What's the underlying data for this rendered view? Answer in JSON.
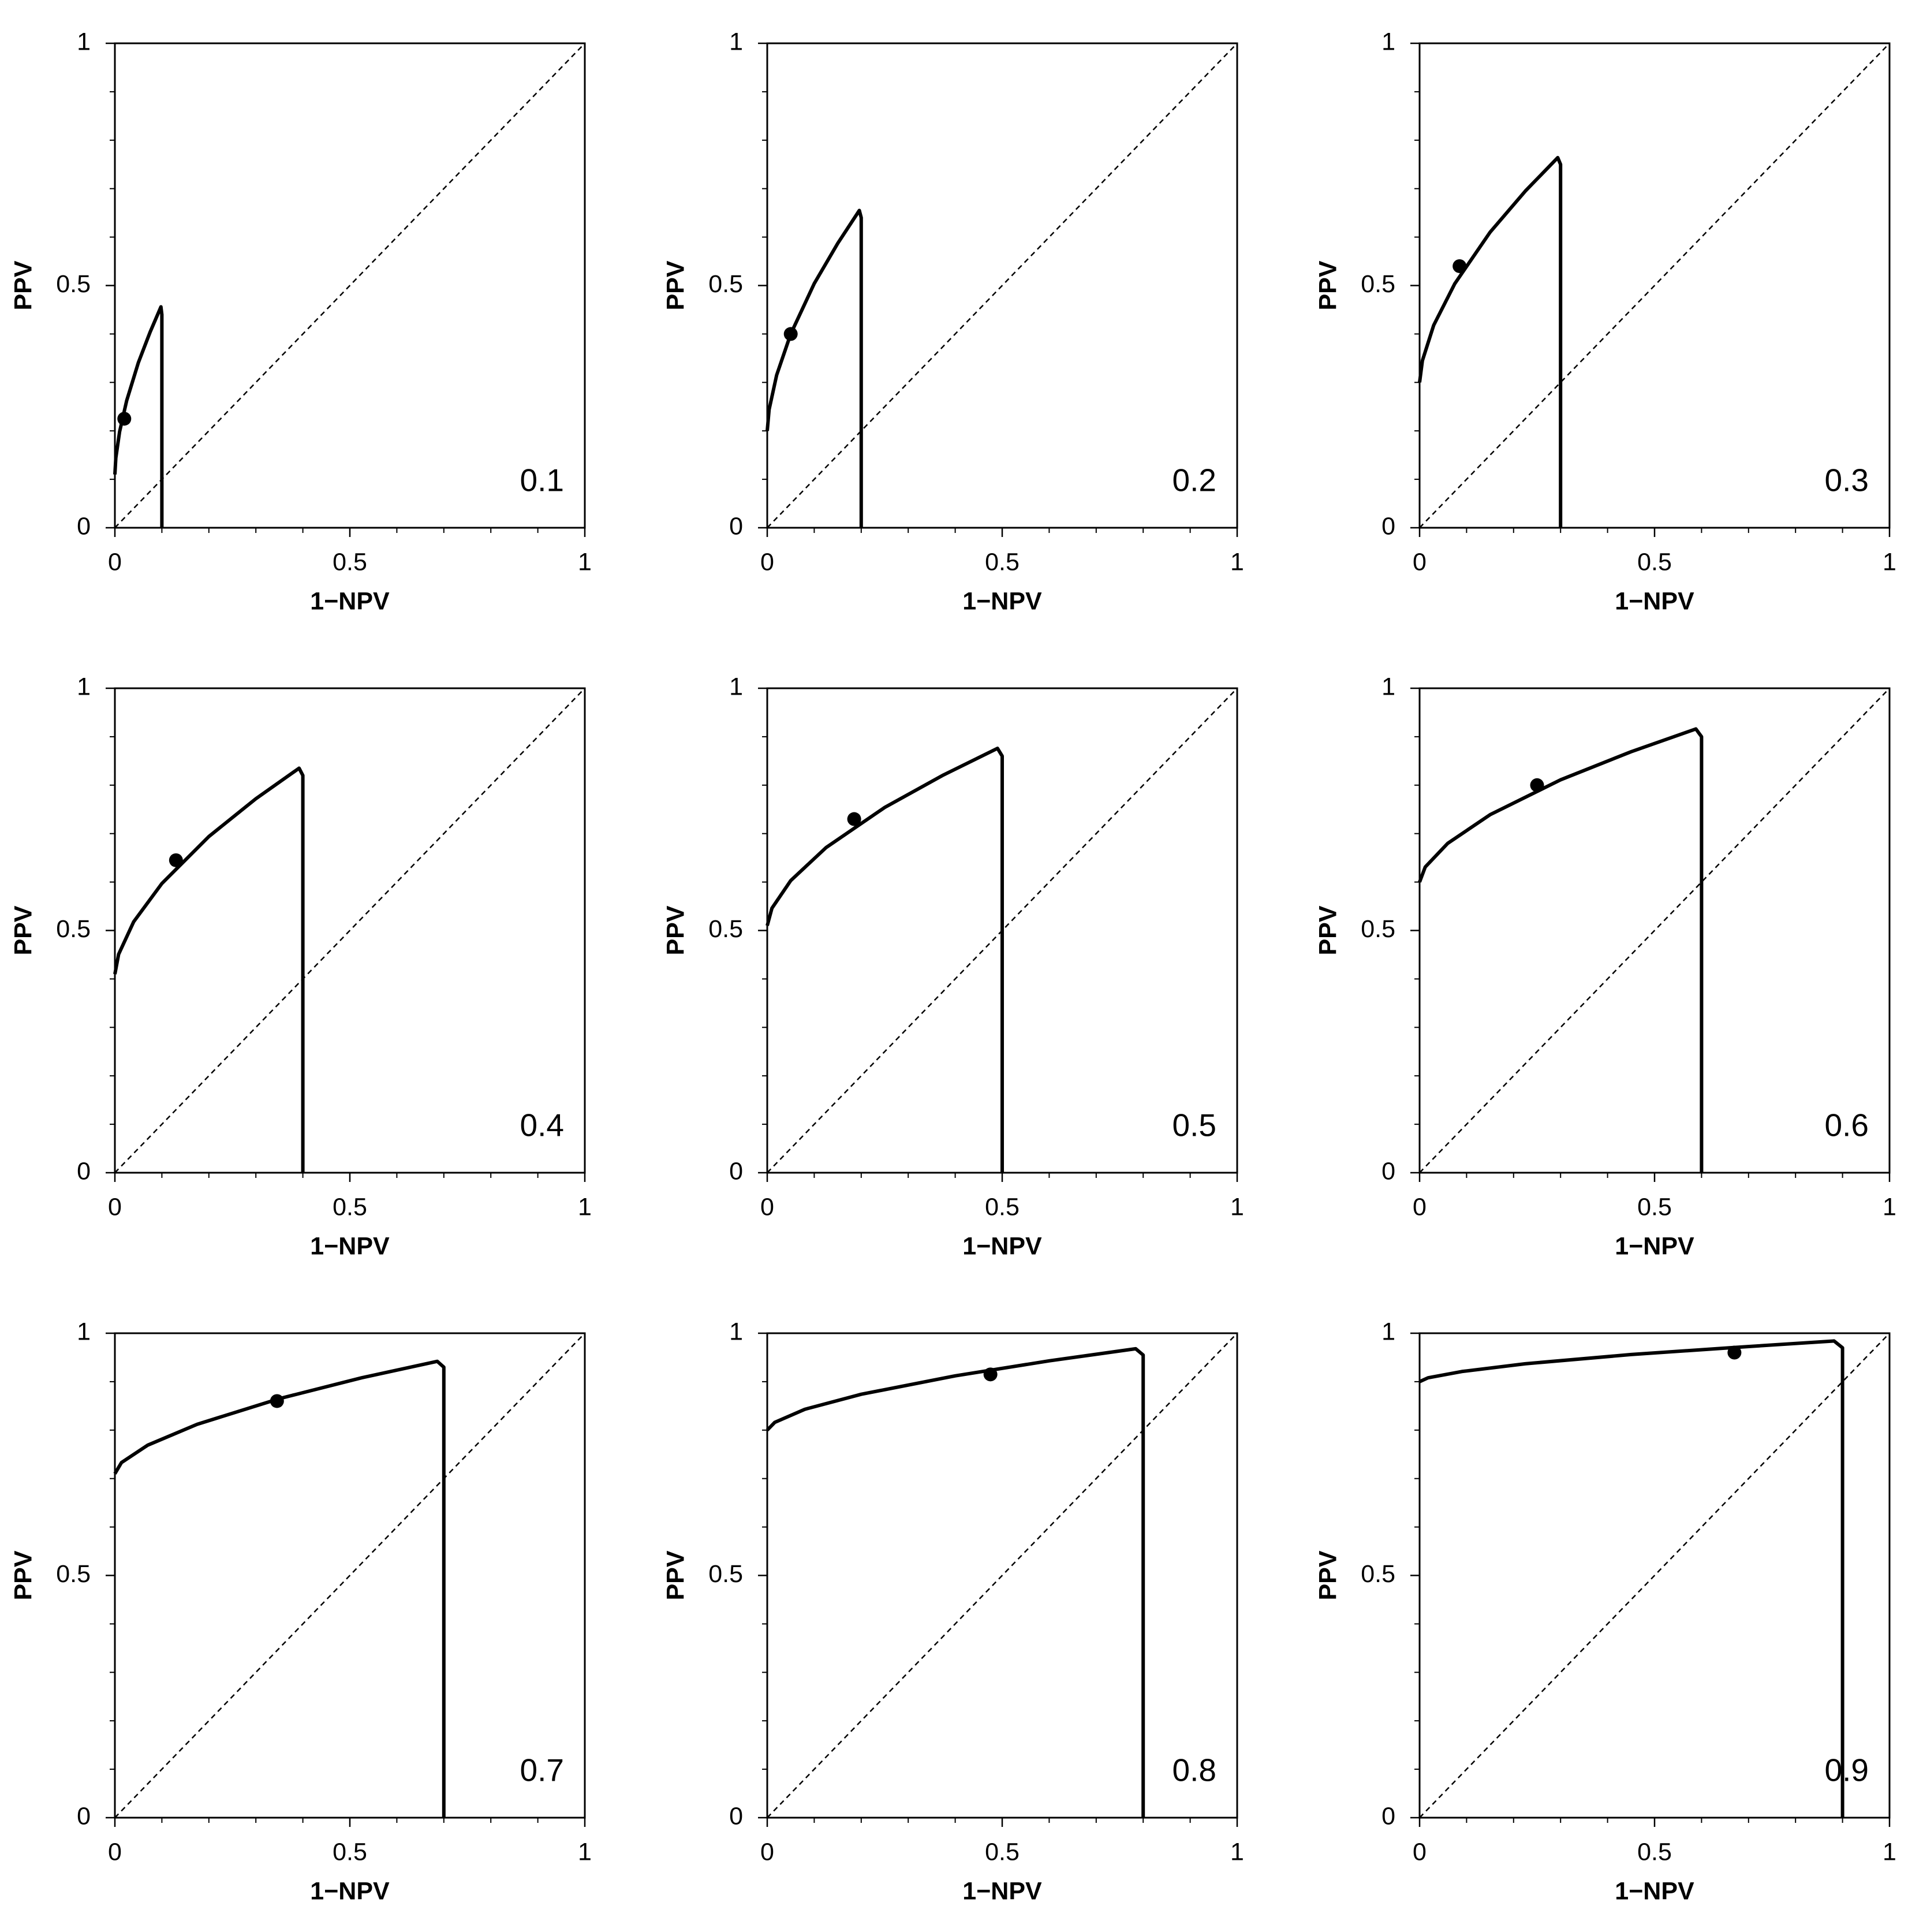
{
  "chart_data": [
    {
      "type": "line",
      "annotation": "0.1",
      "xlabel": "1−NPV",
      "ylabel": "PPV",
      "color": "#000000",
      "x": [
        0,
        0.002,
        0.01,
        0.025,
        0.05,
        0.075,
        0.098,
        0.1,
        0.1
      ],
      "values": [
        0.11,
        0.144,
        0.198,
        0.262,
        0.341,
        0.404,
        0.456,
        0.44,
        0
      ],
      "point": {
        "x": 0.02,
        "y": 0.225
      },
      "xlim": [
        0,
        1
      ],
      "ylim": [
        0,
        1
      ],
      "xticks": [
        0,
        0.5,
        1
      ],
      "yticks": [
        0,
        0.5,
        1
      ],
      "minor_ticks": [
        0.1,
        0.2,
        0.3,
        0.4,
        0.6,
        0.7,
        0.8,
        0.9
      ]
    },
    {
      "type": "line",
      "annotation": "0.2",
      "xlabel": "1−NPV",
      "ylabel": "PPV",
      "color": "#000000",
      "x": [
        0,
        0.004,
        0.02,
        0.05,
        0.1,
        0.15,
        0.196,
        0.2,
        0.2
      ],
      "values": [
        0.2,
        0.244,
        0.315,
        0.4,
        0.504,
        0.587,
        0.655,
        0.64,
        0
      ],
      "point": {
        "x": 0.05,
        "y": 0.4
      },
      "xlim": [
        0,
        1
      ],
      "ylim": [
        0,
        1
      ],
      "xticks": [
        0,
        0.5,
        1
      ],
      "yticks": [
        0,
        0.5,
        1
      ],
      "minor_ticks": [
        0.1,
        0.2,
        0.3,
        0.4,
        0.6,
        0.7,
        0.8,
        0.9
      ]
    },
    {
      "type": "line",
      "annotation": "0.3",
      "xlabel": "1−NPV",
      "ylabel": "PPV",
      "color": "#000000",
      "x": [
        0,
        0.006,
        0.03,
        0.075,
        0.15,
        0.225,
        0.294,
        0.3,
        0.3
      ],
      "values": [
        0.3,
        0.345,
        0.418,
        0.504,
        0.61,
        0.695,
        0.764,
        0.75,
        0
      ],
      "point": {
        "x": 0.085,
        "y": 0.54
      },
      "xlim": [
        0,
        1
      ],
      "ylim": [
        0,
        1
      ],
      "xticks": [
        0,
        0.5,
        1
      ],
      "yticks": [
        0,
        0.5,
        1
      ],
      "minor_ticks": [
        0.1,
        0.2,
        0.3,
        0.4,
        0.6,
        0.7,
        0.8,
        0.9
      ]
    },
    {
      "type": "line",
      "annotation": "0.4",
      "xlabel": "1−NPV",
      "ylabel": "PPV",
      "color": "#000000",
      "x": [
        0,
        0.008,
        0.04,
        0.1,
        0.2,
        0.3,
        0.392,
        0.4,
        0.4
      ],
      "values": [
        0.41,
        0.451,
        0.518,
        0.597,
        0.694,
        0.772,
        0.835,
        0.82,
        0
      ],
      "point": {
        "x": 0.13,
        "y": 0.645
      },
      "xlim": [
        0,
        1
      ],
      "ylim": [
        0,
        1
      ],
      "xticks": [
        0,
        0.5,
        1
      ],
      "yticks": [
        0,
        0.5,
        1
      ],
      "minor_ticks": [
        0.1,
        0.2,
        0.3,
        0.4,
        0.6,
        0.7,
        0.8,
        0.9
      ]
    },
    {
      "type": "line",
      "annotation": "0.5",
      "xlabel": "1−NPV",
      "ylabel": "PPV",
      "color": "#000000",
      "x": [
        0,
        0.01,
        0.05,
        0.125,
        0.25,
        0.375,
        0.49,
        0.5,
        0.5
      ],
      "values": [
        0.51,
        0.546,
        0.603,
        0.671,
        0.754,
        0.821,
        0.876,
        0.86,
        0
      ],
      "point": {
        "x": 0.185,
        "y": 0.73
      },
      "xlim": [
        0,
        1
      ],
      "ylim": [
        0,
        1
      ],
      "xticks": [
        0,
        0.5,
        1
      ],
      "yticks": [
        0,
        0.5,
        1
      ],
      "minor_ticks": [
        0.1,
        0.2,
        0.3,
        0.4,
        0.6,
        0.7,
        0.8,
        0.9
      ]
    },
    {
      "type": "line",
      "annotation": "0.6",
      "xlabel": "1−NPV",
      "ylabel": "PPV",
      "color": "#000000",
      "x": [
        0,
        0.012,
        0.06,
        0.15,
        0.3,
        0.45,
        0.588,
        0.6,
        0.6
      ],
      "values": [
        0.6,
        0.631,
        0.68,
        0.739,
        0.811,
        0.869,
        0.916,
        0.9,
        0
      ],
      "point": {
        "x": 0.25,
        "y": 0.8
      },
      "xlim": [
        0,
        1
      ],
      "ylim": [
        0,
        1
      ],
      "xticks": [
        0,
        0.5,
        1
      ],
      "yticks": [
        0,
        0.5,
        1
      ],
      "minor_ticks": [
        0.1,
        0.2,
        0.3,
        0.4,
        0.6,
        0.7,
        0.8,
        0.9
      ]
    },
    {
      "type": "line",
      "annotation": "0.7",
      "xlabel": "1−NPV",
      "ylabel": "PPV",
      "color": "#000000",
      "x": [
        0,
        0.014,
        0.07,
        0.175,
        0.35,
        0.525,
        0.686,
        0.7,
        0.7
      ],
      "values": [
        0.71,
        0.733,
        0.769,
        0.812,
        0.865,
        0.908,
        0.942,
        0.93,
        0
      ],
      "point": {
        "x": 0.345,
        "y": 0.86
      },
      "xlim": [
        0,
        1
      ],
      "ylim": [
        0,
        1
      ],
      "xticks": [
        0,
        0.5,
        1
      ],
      "yticks": [
        0,
        0.5,
        1
      ],
      "minor_ticks": [
        0.1,
        0.2,
        0.3,
        0.4,
        0.6,
        0.7,
        0.8,
        0.9
      ]
    },
    {
      "type": "line",
      "annotation": "0.8",
      "xlabel": "1−NPV",
      "ylabel": "PPV",
      "color": "#000000",
      "x": [
        0,
        0.016,
        0.08,
        0.2,
        0.4,
        0.6,
        0.784,
        0.8,
        0.8
      ],
      "values": [
        0.8,
        0.816,
        0.843,
        0.874,
        0.912,
        0.943,
        0.968,
        0.955,
        0
      ],
      "point": {
        "x": 0.475,
        "y": 0.915
      },
      "xlim": [
        0,
        1
      ],
      "ylim": [
        0,
        1
      ],
      "xticks": [
        0,
        0.5,
        1
      ],
      "yticks": [
        0,
        0.5,
        1
      ],
      "minor_ticks": [
        0.1,
        0.2,
        0.3,
        0.4,
        0.6,
        0.7,
        0.8,
        0.9
      ]
    },
    {
      "type": "line",
      "annotation": "0.9",
      "xlabel": "1−NPV",
      "ylabel": "PPV",
      "color": "#000000",
      "x": [
        0,
        0.018,
        0.09,
        0.225,
        0.45,
        0.675,
        0.882,
        0.9,
        0.9
      ],
      "values": [
        0.9,
        0.908,
        0.921,
        0.937,
        0.956,
        0.971,
        0.984,
        0.97,
        0
      ],
      "point": {
        "x": 0.67,
        "y": 0.96
      },
      "xlim": [
        0,
        1
      ],
      "ylim": [
        0,
        1
      ],
      "xticks": [
        0,
        0.5,
        1
      ],
      "yticks": [
        0,
        0.5,
        1
      ],
      "minor_ticks": [
        0.1,
        0.2,
        0.3,
        0.4,
        0.6,
        0.7,
        0.8,
        0.9
      ]
    }
  ]
}
